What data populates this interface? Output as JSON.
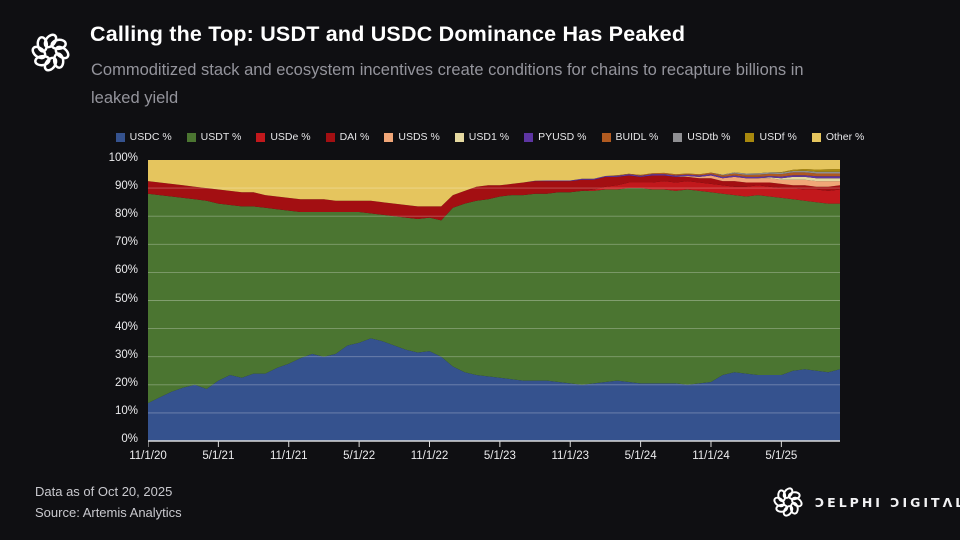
{
  "header": {
    "title": "Calling the Top: USDT and USDC Dominance Has Peaked",
    "subtitle_line1": "Commoditized stack and ecosystem incentives create conditions for chains to recapture billions in",
    "subtitle_line2": "leaked yield"
  },
  "footer": {
    "data_as_of": "Data as of Oct 20, 2025",
    "source": "Source: Artemis Analytics",
    "brand_wordmark": "ƆELPHI ƆIGITΛL"
  },
  "colors": {
    "background": "#0f0f12",
    "grid": "rgba(255,255,255,0.30)",
    "axis": "#dcdcdc"
  },
  "chart_data": {
    "type": "area",
    "stacked": true,
    "unit": "%",
    "ylim": [
      0,
      100
    ],
    "grid": "horizontal",
    "legend_position": "top",
    "y_tick_labels": [
      "100%",
      "90%",
      "80%",
      "70%",
      "60%",
      "50%",
      "40%",
      "30%",
      "20%",
      "10%",
      "0%"
    ],
    "x_tick_labels": [
      "11/1/20",
      "5/1/21",
      "11/1/21",
      "5/1/22",
      "11/1/22",
      "5/1/23",
      "11/1/23",
      "5/1/24",
      "11/1/24",
      "5/1/25"
    ],
    "x_tick_indices": [
      0,
      6,
      12,
      18,
      24,
      30,
      36,
      42,
      48,
      54
    ],
    "x": [
      "11/20",
      "12/20",
      "1/21",
      "2/21",
      "3/21",
      "4/21",
      "5/21",
      "6/21",
      "7/21",
      "8/21",
      "9/21",
      "10/21",
      "11/21",
      "12/21",
      "1/22",
      "2/22",
      "3/22",
      "4/22",
      "5/22",
      "6/22",
      "7/22",
      "8/22",
      "9/22",
      "10/22",
      "11/22",
      "12/22",
      "1/23",
      "2/23",
      "3/23",
      "4/23",
      "5/23",
      "6/23",
      "7/23",
      "8/23",
      "9/23",
      "10/23",
      "11/23",
      "12/23",
      "1/24",
      "2/24",
      "3/24",
      "4/24",
      "5/24",
      "6/24",
      "7/24",
      "8/24",
      "9/24",
      "10/24",
      "11/24",
      "12/24",
      "1/25",
      "2/25",
      "3/25",
      "4/25",
      "5/25",
      "6/25",
      "7/25",
      "8/25",
      "9/25",
      "10/25"
    ],
    "series": [
      {
        "name": "USDC",
        "label": "USDC %",
        "color": "#35528e",
        "values": [
          13.5,
          15.5,
          17.5,
          19,
          20,
          18.5,
          21.5,
          23.5,
          22.5,
          24,
          24,
          26,
          27.5,
          29.5,
          31,
          30,
          31,
          34,
          35,
          36.5,
          35.5,
          34,
          32.5,
          31.5,
          32,
          30,
          26.5,
          24.5,
          23.5,
          23,
          22.5,
          22,
          21.5,
          21.5,
          21.5,
          21,
          20.5,
          20,
          20.5,
          21,
          21.5,
          21,
          20.5,
          20.5,
          20.5,
          20.5,
          20,
          20.5,
          21,
          23.5,
          24.5,
          24,
          23.5,
          23.5,
          23.5,
          25,
          25.5,
          25,
          24.5,
          25.5
        ]
      },
      {
        "name": "USDT",
        "label": "USDT %",
        "color": "#4b7531",
        "values": [
          74.5,
          72,
          69.5,
          67.5,
          66,
          67,
          63,
          60.5,
          61,
          59.5,
          59,
          56.5,
          54.5,
          52,
          50.5,
          51.5,
          50.5,
          47.5,
          46.5,
          44.5,
          45,
          46,
          47,
          47.5,
          47.5,
          48.5,
          56.5,
          60,
          62,
          63,
          64.5,
          65.5,
          66,
          66.5,
          66.5,
          67.5,
          68,
          69,
          68.5,
          68.5,
          68,
          69,
          69.5,
          69,
          69,
          68.5,
          69.5,
          68.5,
          67.5,
          64.5,
          63,
          63,
          64,
          63.5,
          63,
          61,
          60,
          60,
          60,
          59
        ]
      },
      {
        "name": "USDe",
        "label": "USDe %",
        "color": "#c2181c",
        "values": [
          0,
          0,
          0,
          0,
          0,
          0,
          0,
          0,
          0,
          0,
          0,
          0,
          0,
          0,
          0,
          0,
          0,
          0,
          0,
          0,
          0,
          0,
          0,
          0,
          0,
          0,
          0,
          0,
          0,
          0,
          0,
          0,
          0,
          0,
          0,
          0,
          0,
          0,
          0.5,
          1,
          1.5,
          2,
          2,
          2.5,
          3,
          3,
          3,
          3,
          3,
          3,
          3,
          3.5,
          3.5,
          3.5,
          3.5,
          4,
          4,
          4.5,
          4.5,
          5
        ]
      },
      {
        "name": "DAI",
        "label": "DAI %",
        "color": "#a30f12",
        "values": [
          4.5,
          4.5,
          4.5,
          4.5,
          4.5,
          4.5,
          5,
          5,
          5,
          5,
          4.5,
          4.5,
          4.5,
          4.5,
          4.5,
          4.5,
          4,
          4,
          4,
          4.5,
          4.5,
          4.5,
          4.5,
          4.5,
          4,
          5,
          4.5,
          4.5,
          5,
          5,
          4,
          4,
          4.5,
          4.5,
          4.5,
          4,
          4,
          4,
          3.5,
          3.5,
          3,
          2.5,
          2,
          2.5,
          2,
          2,
          1.5,
          1.5,
          2,
          1.5,
          2,
          1.5,
          1,
          1.5,
          1.5,
          1,
          1.5,
          1,
          1.5,
          1.5
        ]
      },
      {
        "name": "USDS",
        "label": "USDS %",
        "color": "#f0a678",
        "values": [
          0,
          0,
          0,
          0,
          0,
          0,
          0,
          0,
          0,
          0,
          0,
          0,
          0,
          0,
          0,
          0,
          0,
          0,
          0,
          0,
          0,
          0,
          0,
          0,
          0,
          0,
          0,
          0,
          0,
          0,
          0,
          0,
          0,
          0,
          0,
          0,
          0,
          0,
          0,
          0,
          0,
          0,
          0,
          0,
          0,
          0,
          0.3,
          0.5,
          1,
          1,
          1.5,
          1.5,
          1.5,
          1.5,
          1.5,
          2,
          2,
          2,
          2,
          1.5
        ]
      },
      {
        "name": "USD1",
        "label": "USD1 %",
        "color": "#e5d9a0",
        "values": [
          0,
          0,
          0,
          0,
          0,
          0,
          0,
          0,
          0,
          0,
          0,
          0,
          0,
          0,
          0,
          0,
          0,
          0,
          0,
          0,
          0,
          0,
          0,
          0,
          0,
          0,
          0,
          0,
          0,
          0,
          0,
          0,
          0,
          0,
          0,
          0,
          0,
          0,
          0,
          0,
          0,
          0,
          0,
          0,
          0,
          0,
          0,
          0,
          0,
          0,
          0,
          0,
          0,
          0.3,
          0.5,
          1,
          1,
          1,
          1,
          1
        ]
      },
      {
        "name": "PYUSD",
        "label": "PYUSD %",
        "color": "#5d35a2",
        "values": [
          0,
          0,
          0,
          0,
          0,
          0,
          0,
          0,
          0,
          0,
          0,
          0,
          0,
          0,
          0,
          0,
          0,
          0,
          0,
          0,
          0,
          0,
          0,
          0,
          0,
          0,
          0,
          0,
          0,
          0,
          0,
          0,
          0,
          0.1,
          0.2,
          0.2,
          0.2,
          0.3,
          0.3,
          0.3,
          0.4,
          0.4,
          0.4,
          0.5,
          0.5,
          0.5,
          0.5,
          0.5,
          0.5,
          0.5,
          0.5,
          0.5,
          0.5,
          0.5,
          0.6,
          0.6,
          0.6,
          0.7,
          0.7,
          0.7
        ]
      },
      {
        "name": "BUIDL",
        "label": "BUIDL %",
        "color": "#b05a20",
        "values": [
          0,
          0,
          0,
          0,
          0,
          0,
          0,
          0,
          0,
          0,
          0,
          0,
          0,
          0,
          0,
          0,
          0,
          0,
          0,
          0,
          0,
          0,
          0,
          0,
          0,
          0,
          0,
          0,
          0,
          0,
          0,
          0,
          0,
          0,
          0,
          0,
          0,
          0,
          0,
          0,
          0.2,
          0.2,
          0.3,
          0.3,
          0.4,
          0.4,
          0.4,
          0.4,
          0.5,
          0.6,
          0.7,
          0.7,
          0.8,
          0.8,
          0.9,
          1,
          1,
          1,
          1,
          1
        ]
      },
      {
        "name": "USDtb",
        "label": "USDtb %",
        "color": "#8f8f92",
        "values": [
          0,
          0,
          0,
          0,
          0,
          0,
          0,
          0,
          0,
          0,
          0,
          0,
          0,
          0,
          0,
          0,
          0,
          0,
          0,
          0,
          0,
          0,
          0,
          0,
          0,
          0,
          0,
          0,
          0,
          0,
          0,
          0,
          0,
          0,
          0,
          0,
          0,
          0,
          0,
          0,
          0,
          0,
          0,
          0,
          0,
          0,
          0,
          0,
          0,
          0.2,
          0.4,
          0.5,
          0.5,
          0.5,
          0.5,
          0.5,
          0.6,
          0.6,
          0.6,
          0.6
        ]
      },
      {
        "name": "USDf",
        "label": "USDf %",
        "color": "#a8880e",
        "values": [
          0,
          0,
          0,
          0,
          0,
          0,
          0,
          0,
          0,
          0,
          0,
          0,
          0,
          0,
          0,
          0,
          0,
          0,
          0,
          0,
          0,
          0,
          0,
          0,
          0,
          0,
          0,
          0,
          0,
          0,
          0,
          0,
          0,
          0,
          0,
          0,
          0,
          0,
          0,
          0,
          0,
          0,
          0,
          0,
          0,
          0,
          0,
          0,
          0,
          0,
          0,
          0,
          0,
          0,
          0.2,
          0.4,
          0.6,
          0.8,
          0.9,
          1
        ]
      },
      {
        "name": "Other",
        "label": "Other %",
        "color": "#e5c55e",
        "values": [
          7.5,
          8,
          8.5,
          9,
          9.5,
          10,
          10.5,
          11,
          11.5,
          11.5,
          12.5,
          13,
          13.5,
          14,
          14,
          14,
          14.5,
          14.5,
          14.5,
          14.5,
          15,
          15.5,
          16,
          16.5,
          16.5,
          16.5,
          12.5,
          11,
          9.5,
          9,
          9,
          8.5,
          8,
          7.4,
          7.3,
          7.3,
          7.3,
          6.7,
          6.7,
          5.7,
          5.4,
          4.9,
          5.3,
          4.7,
          4.6,
          5.1,
          4.8,
          5.1,
          4.5,
          5.2,
          4.4,
          4.8,
          4.7,
          4.4,
          4.3,
          3.5,
          3.2,
          3.4,
          3.3,
          3.2
        ]
      }
    ]
  }
}
